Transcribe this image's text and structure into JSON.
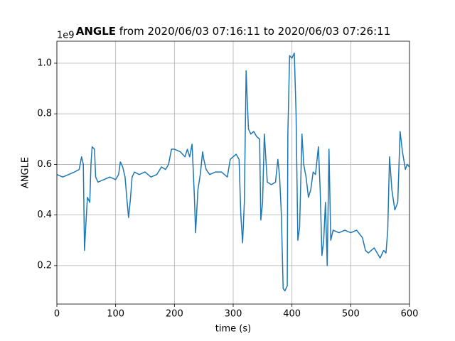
{
  "chart_data": {
    "type": "line",
    "title_bold": "ANGLE",
    "title": " from 2020/06/03 07:16:11 to 2020/06/03 07:26:11",
    "x_label": "time (s)",
    "y_label": "ANGLE",
    "offset_label": "1e9",
    "xlim": [
      0,
      600
    ],
    "ylim": [
      0.048,
      1.087
    ],
    "xticks": [
      0,
      100,
      200,
      300,
      400,
      500,
      600
    ],
    "yticks": [
      0.2,
      0.4,
      0.6,
      0.8,
      {
        "value": 1,
        "label": "1.0"
      }
    ],
    "grid": true,
    "series": [
      {
        "name": "ANGLE",
        "color": "#1f77b4",
        "x": [
          0,
          10,
          20,
          30,
          38,
          42,
          45,
          47,
          49,
          52,
          56,
          58,
          60,
          64,
          66,
          70,
          80,
          90,
          100,
          105,
          108,
          112,
          116,
          120,
          122,
          125,
          128,
          132,
          140,
          150,
          160,
          170,
          178,
          185,
          190,
          195,
          200,
          210,
          218,
          222,
          226,
          230,
          232,
          234,
          236,
          240,
          244,
          248,
          250,
          254,
          260,
          270,
          280,
          290,
          295,
          300,
          305,
          310,
          313,
          316,
          319,
          322,
          324,
          326,
          330,
          335,
          340,
          345,
          347,
          350,
          353,
          358,
          365,
          372,
          376,
          379,
          382,
          385,
          388,
          392,
          393,
          396,
          400,
          404,
          407,
          410,
          413,
          417,
          420,
          424,
          428,
          432,
          436,
          440,
          445,
          448,
          451,
          454,
          457,
          460,
          463,
          466,
          470,
          480,
          490,
          500,
          510,
          520,
          525,
          530,
          540,
          550,
          556,
          560,
          563,
          566,
          570,
          575,
          580,
          584,
          588,
          593,
          596,
          600
        ],
        "values": [
          0.56,
          0.55,
          0.56,
          0.57,
          0.58,
          0.63,
          0.6,
          0.26,
          0.35,
          0.47,
          0.45,
          0.6,
          0.67,
          0.66,
          0.55,
          0.53,
          0.54,
          0.55,
          0.54,
          0.56,
          0.61,
          0.59,
          0.55,
          0.44,
          0.39,
          0.46,
          0.55,
          0.57,
          0.56,
          0.57,
          0.55,
          0.56,
          0.59,
          0.58,
          0.6,
          0.66,
          0.66,
          0.65,
          0.63,
          0.66,
          0.63,
          0.68,
          0.58,
          0.47,
          0.33,
          0.5,
          0.56,
          0.65,
          0.62,
          0.58,
          0.56,
          0.57,
          0.57,
          0.55,
          0.62,
          0.63,
          0.64,
          0.62,
          0.4,
          0.29,
          0.45,
          0.97,
          0.85,
          0.74,
          0.72,
          0.73,
          0.71,
          0.7,
          0.38,
          0.45,
          0.72,
          0.53,
          0.52,
          0.53,
          0.62,
          0.55,
          0.4,
          0.11,
          0.1,
          0.12,
          0.72,
          1.03,
          1.02,
          1.04,
          0.8,
          0.3,
          0.35,
          0.72,
          0.6,
          0.55,
          0.47,
          0.5,
          0.57,
          0.56,
          0.67,
          0.5,
          0.24,
          0.3,
          0.45,
          0.2,
          0.66,
          0.3,
          0.34,
          0.33,
          0.34,
          0.33,
          0.34,
          0.31,
          0.26,
          0.25,
          0.27,
          0.23,
          0.26,
          0.25,
          0.34,
          0.63,
          0.5,
          0.42,
          0.45,
          0.73,
          0.65,
          0.58,
          0.6,
          0.59
        ]
      }
    ]
  }
}
